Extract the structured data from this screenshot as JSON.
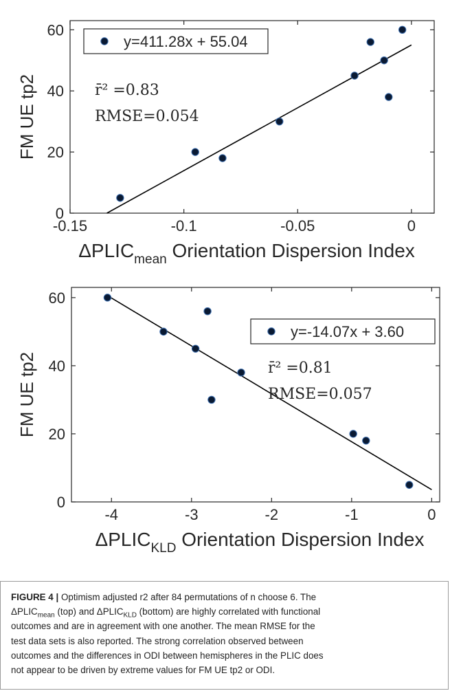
{
  "chart_data": [
    {
      "type": "scatter",
      "xlabel_prefix": "ΔPLIC",
      "xlabel_sub": "mean",
      "xlabel_suffix": " Orientation Dispersion Index",
      "ylabel": "FM UE tp2",
      "xlim": [
        -0.15,
        0.01
      ],
      "ylim": [
        0,
        63
      ],
      "xticks": [
        -0.15,
        -0.1,
        -0.05,
        0
      ],
      "xtick_labels": [
        "-0.15",
        "-0.1",
        "-0.05",
        "0"
      ],
      "yticks": [
        0,
        20,
        40,
        60
      ],
      "ytick_labels": [
        "0",
        "20",
        "40",
        "60"
      ],
      "points": [
        {
          "x": -0.128,
          "y": 5
        },
        {
          "x": -0.095,
          "y": 20
        },
        {
          "x": -0.083,
          "y": 18
        },
        {
          "x": -0.058,
          "y": 30
        },
        {
          "x": -0.025,
          "y": 45
        },
        {
          "x": -0.018,
          "y": 56
        },
        {
          "x": -0.012,
          "y": 50
        },
        {
          "x": -0.01,
          "y": 38
        },
        {
          "x": -0.004,
          "y": 60
        }
      ],
      "fit": {
        "slope": 411.28,
        "intercept": 55.04
      },
      "legend_text": "y=411.28x + 55.04",
      "legend_position": "top-left",
      "r2_label": "r̄² =0.83",
      "rmse_label": "RMSE=0.054"
    },
    {
      "type": "scatter",
      "xlabel_prefix": "ΔPLIC",
      "xlabel_sub": "KLD",
      "xlabel_suffix": " Orientation Dispersion Index",
      "ylabel": "FM UE tp2",
      "xlim": [
        -4.5,
        0.1
      ],
      "ylim": [
        0,
        63
      ],
      "xticks": [
        -4,
        -3,
        -2,
        -1,
        0
      ],
      "xtick_labels": [
        "-4",
        "-3",
        "-2",
        "-1",
        "0"
      ],
      "yticks": [
        0,
        20,
        40,
        60
      ],
      "ytick_labels": [
        "0",
        "20",
        "40",
        "60"
      ],
      "points": [
        {
          "x": -4.05,
          "y": 60
        },
        {
          "x": -3.35,
          "y": 50
        },
        {
          "x": -2.95,
          "y": 45
        },
        {
          "x": -2.8,
          "y": 56
        },
        {
          "x": -2.75,
          "y": 30
        },
        {
          "x": -2.38,
          "y": 38
        },
        {
          "x": -0.98,
          "y": 20
        },
        {
          "x": -0.82,
          "y": 18
        },
        {
          "x": -0.28,
          "y": 5
        }
      ],
      "fit": {
        "slope": -14.07,
        "intercept": 3.6
      },
      "legend_text": "y=-14.07x + 3.60",
      "legend_position": "top-right",
      "r2_label": "r̄² =0.81",
      "rmse_label": "RMSE=0.057"
    }
  ],
  "caption": {
    "label": "FIGURE 4 |",
    "line1": " Optimism adjusted r2 after 84 permutations of n choose 6. The",
    "line2_a": "ΔPLIC",
    "line2_sub1": "mean",
    "line2_b": " (top) and ΔPLIC",
    "line2_sub2": "KLD",
    "line2_c": " (bottom) are highly correlated with functional",
    "line3": "outcomes and are in agreement with one another. The mean RMSE for the",
    "line4": "test data sets is also reported. The strong correlation observed between",
    "line5": "outcomes and the differences in ODI between hemispheres in the PLIC does",
    "line6": "not appear to be driven by extreme values for FM UE tp2 or ODI."
  },
  "colors": {
    "marker_fill": "#0a1a33",
    "marker_edge": "#3d6fb0",
    "line": "#000000",
    "axis": "#262626",
    "text": "#262626"
  }
}
